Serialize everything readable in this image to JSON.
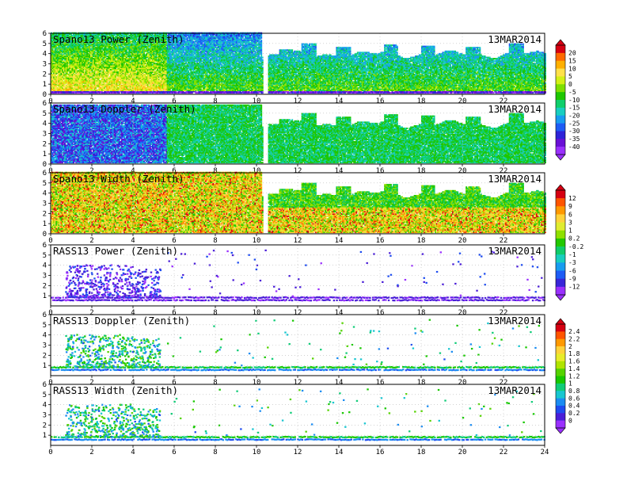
{
  "chart_data": [
    {
      "type": "heatmap",
      "title": "Spano13 Power (Zenith)",
      "date": "13MAR2014",
      "x_ticks": [
        0,
        2,
        4,
        6,
        8,
        10,
        12,
        14,
        16,
        18,
        20,
        22
      ],
      "y_ticks": [
        0,
        1,
        2,
        3,
        4,
        5,
        6
      ],
      "xlim": [
        0,
        24
      ],
      "ylim": [
        0,
        6
      ],
      "colorbar": "power",
      "pattern": "profiler_power"
    },
    {
      "type": "heatmap",
      "title": "Spano13 Doppler (Zenith)",
      "date": "13MAR2014",
      "x_ticks": [
        0,
        2,
        4,
        6,
        8,
        10,
        12,
        14,
        16,
        18,
        20,
        22
      ],
      "y_ticks": [
        0,
        1,
        2,
        3,
        4,
        5,
        6
      ],
      "xlim": [
        0,
        24
      ],
      "ylim": [
        0,
        6
      ],
      "pattern": "profiler_doppler"
    },
    {
      "type": "heatmap",
      "title": "Spano13 Width (Zenith)",
      "date": "13MAR2014",
      "x_ticks": [
        0,
        2,
        4,
        6,
        8,
        10,
        12,
        14,
        16,
        18,
        20,
        22
      ],
      "y_ticks": [
        0,
        1,
        2,
        3,
        4,
        5,
        6
      ],
      "xlim": [
        0,
        24
      ],
      "ylim": [
        0,
        6
      ],
      "colorbar": "doppler_width",
      "pattern": "profiler_width"
    },
    {
      "type": "heatmap",
      "title": "RASS13 Power (Zenith)",
      "date": "13MAR2014",
      "x_ticks": [
        0,
        2,
        4,
        6,
        8,
        10,
        12,
        14,
        16,
        18,
        20,
        22
      ],
      "y_ticks": [
        1,
        2,
        3,
        4,
        5,
        6
      ],
      "xlim": [
        0,
        24
      ],
      "ylim": [
        0,
        6
      ],
      "pattern": "rass_power"
    },
    {
      "type": "heatmap",
      "title": "RASS13 Doppler (Zenith)",
      "date": "13MAR2014",
      "x_ticks": [
        0,
        2,
        4,
        6,
        8,
        10,
        12,
        14,
        16,
        18,
        20,
        22
      ],
      "y_ticks": [
        1,
        2,
        3,
        4,
        5,
        6
      ],
      "xlim": [
        0,
        24
      ],
      "ylim": [
        0,
        6
      ],
      "colorbar": "rass",
      "pattern": "rass_doppler"
    },
    {
      "type": "heatmap",
      "title": "RASS13 Width (Zenith)",
      "date": "13MAR2014",
      "x_ticks": [
        0,
        2,
        4,
        6,
        8,
        10,
        12,
        14,
        16,
        18,
        20,
        22,
        24
      ],
      "y_ticks": [
        1,
        2,
        3,
        4,
        5,
        6
      ],
      "xlim": [
        0,
        24
      ],
      "ylim": [
        0,
        6
      ],
      "pattern": "rass_width"
    }
  ],
  "colorbars": {
    "power": {
      "labels": [
        "20",
        "15",
        "10",
        "5",
        "0",
        "-5",
        "-10",
        "-15",
        "-20",
        "-25",
        "-30",
        "-35",
        "-40"
      ],
      "colors": [
        "#d60012",
        "#ff6a00",
        "#ffb000",
        "#ffe14a",
        "#d4f016",
        "#7ee000",
        "#1ec700",
        "#0fcf6b",
        "#18cec0",
        "#189cf0",
        "#1e5cf5",
        "#2e23d8",
        "#6a10d6",
        "#9a30ff"
      ]
    },
    "doppler_width": {
      "labels": [
        "12",
        "9",
        "6",
        "3",
        "1",
        "0.2",
        "-0.2",
        "-1",
        "-3",
        "-6",
        "-9",
        "-12"
      ],
      "colors": [
        "#d60012",
        "#ff5500",
        "#ff9900",
        "#ffd23a",
        "#e0ec30",
        "#8fe000",
        "#22c800",
        "#10cc6a",
        "#18cebe",
        "#189cf0",
        "#1e5cf5",
        "#3826d8",
        "#9a30ff"
      ]
    },
    "rass": {
      "labels": [
        "2.4",
        "2.2",
        "2",
        "1.8",
        "1.6",
        "1.4",
        "1.2",
        "1",
        "0.8",
        "0.6",
        "0.4",
        "0.2",
        "0"
      ],
      "colors": [
        "#d60012",
        "#ff5500",
        "#ff9900",
        "#ffd23a",
        "#e8ec2a",
        "#b0e400",
        "#55d300",
        "#18c800",
        "#10cc78",
        "#18c6d0",
        "#1a8cf2",
        "#1e4cf0",
        "#4a1ed8",
        "#9a30ff"
      ]
    }
  }
}
